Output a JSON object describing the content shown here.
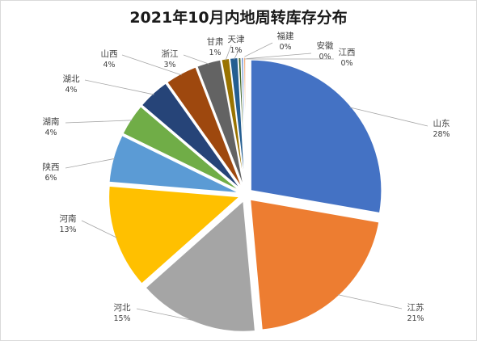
{
  "chart_data": {
    "type": "pie",
    "title": "2021年10月内地周转库存分布",
    "legend": "none",
    "slices": [
      {
        "name": "山东",
        "value": 28,
        "label": "28%",
        "color": "#4472c4"
      },
      {
        "name": "江苏",
        "value": 21,
        "label": "21%",
        "color": "#ed7d31"
      },
      {
        "name": "河北",
        "value": 15,
        "label": "15%",
        "color": "#a5a5a5"
      },
      {
        "name": "河南",
        "value": 13,
        "label": "13%",
        "color": "#ffc000"
      },
      {
        "name": "陕西",
        "value": 6,
        "label": "6%",
        "color": "#5b9bd5"
      },
      {
        "name": "湖南",
        "value": 4,
        "label": "4%",
        "color": "#70ad47"
      },
      {
        "name": "湖北",
        "value": 4,
        "label": "4%",
        "color": "#264478"
      },
      {
        "name": "山西",
        "value": 4,
        "label": "4%",
        "color": "#9e480e"
      },
      {
        "name": "浙江",
        "value": 3,
        "label": "3%",
        "color": "#636363"
      },
      {
        "name": "甘肃",
        "value": 1,
        "label": "1%",
        "color": "#997300"
      },
      {
        "name": "天津",
        "value": 1,
        "label": "1%",
        "color": "#255e91"
      },
      {
        "name": "福建",
        "value": 0.35,
        "label": "0%",
        "color": "#43682b"
      },
      {
        "name": "安徽",
        "value": 0.3,
        "label": "0%",
        "color": "#698ed0"
      },
      {
        "name": "江西",
        "value": 0.25,
        "label": "0%",
        "color": "#f1975a"
      }
    ]
  }
}
